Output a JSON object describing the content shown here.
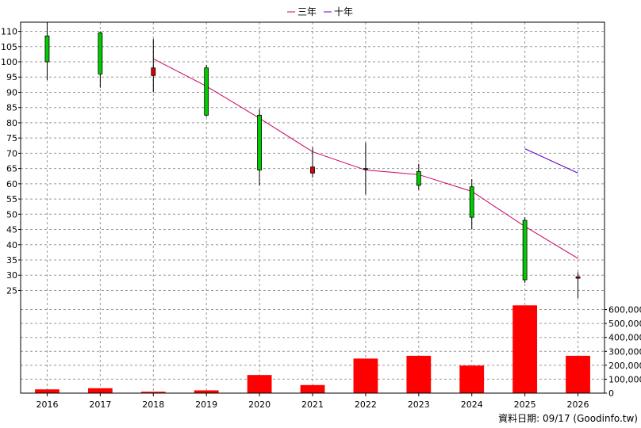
{
  "chart_data": {
    "type": "candlestick",
    "categories": [
      "2016",
      "2017",
      "2018",
      "2019",
      "2020",
      "2021",
      "2022",
      "2023",
      "2024",
      "2025",
      "2026"
    ],
    "legend": {
      "placement": "top-center",
      "items": [
        {
          "label": "三年",
          "color": "#cc0066"
        },
        {
          "label": "十年",
          "color": "#6600cc"
        }
      ]
    },
    "price_axis": {
      "ylim": [
        22,
        113
      ],
      "ticks": [
        "25",
        "30",
        "35",
        "40",
        "45",
        "50",
        "55",
        "60",
        "65",
        "70",
        "75",
        "80",
        "85",
        "90",
        "95",
        "100",
        "105",
        "110"
      ]
    },
    "volume_axis": {
      "ylim": [
        0,
        660000
      ],
      "ticks": [
        "0",
        "100,000",
        "200,000",
        "300,000",
        "400,000",
        "500,000",
        "600,000"
      ]
    },
    "candles": [
      {
        "x": "2016",
        "open": 100.0,
        "close": 108.5,
        "high": 113.0,
        "low": 94.0
      },
      {
        "x": "2017",
        "open": 96.0,
        "close": 109.5,
        "high": 110.0,
        "low": 91.5
      },
      {
        "x": "2018",
        "open": 98.0,
        "close": 95.5,
        "high": 107.5,
        "low": 90.0
      },
      {
        "x": "2019",
        "open": 82.5,
        "close": 98.0,
        "high": 99.0,
        "low": 82.0
      },
      {
        "x": "2020",
        "open": 64.5,
        "close": 82.5,
        "high": 84.5,
        "low": 59.5
      },
      {
        "x": "2021",
        "open": 65.5,
        "close": 63.5,
        "high": 72.0,
        "low": 62.0
      },
      {
        "x": "2022",
        "open": 65.0,
        "close": 65.0,
        "high": 73.5,
        "low": 56.5
      },
      {
        "x": "2023",
        "open": 59.5,
        "close": 64.0,
        "high": 66.5,
        "low": 58.0
      },
      {
        "x": "2024",
        "open": 49.0,
        "close": 59.0,
        "high": 61.5,
        "low": 45.0
      },
      {
        "x": "2025",
        "open": 28.5,
        "close": 48.0,
        "high": 49.0,
        "low": 27.5
      },
      {
        "x": "2026",
        "open": 29.5,
        "close": 29.0,
        "high": 31.0,
        "low": 22.5
      }
    ],
    "volume": {
      "values": [
        27000,
        35000,
        10000,
        20000,
        130000,
        58000,
        248000,
        268000,
        198000,
        630000,
        268000
      ],
      "color": "#ff0000"
    },
    "ma_lines": [
      {
        "name": "三年",
        "color": "#cc0066",
        "points": [
          [
            "2018",
            101.0
          ],
          [
            "2019",
            92.0
          ],
          [
            "2020",
            81.5
          ],
          [
            "2021",
            70.5
          ],
          [
            "2022",
            64.5
          ],
          [
            "2023",
            63.0
          ],
          [
            "2024",
            57.5
          ],
          [
            "2025",
            46.0
          ],
          [
            "2026",
            35.5
          ]
        ]
      },
      {
        "name": "十年",
        "color": "#6600cc",
        "points": [
          [
            "2025",
            71.5
          ],
          [
            "2026",
            63.5
          ]
        ]
      }
    ],
    "candle_colors": {
      "up": "#00cc00",
      "down": "#dd0000"
    },
    "grid": true
  },
  "footer": {
    "source": "資料日期: 09/17  (Goodinfo.tw)"
  }
}
